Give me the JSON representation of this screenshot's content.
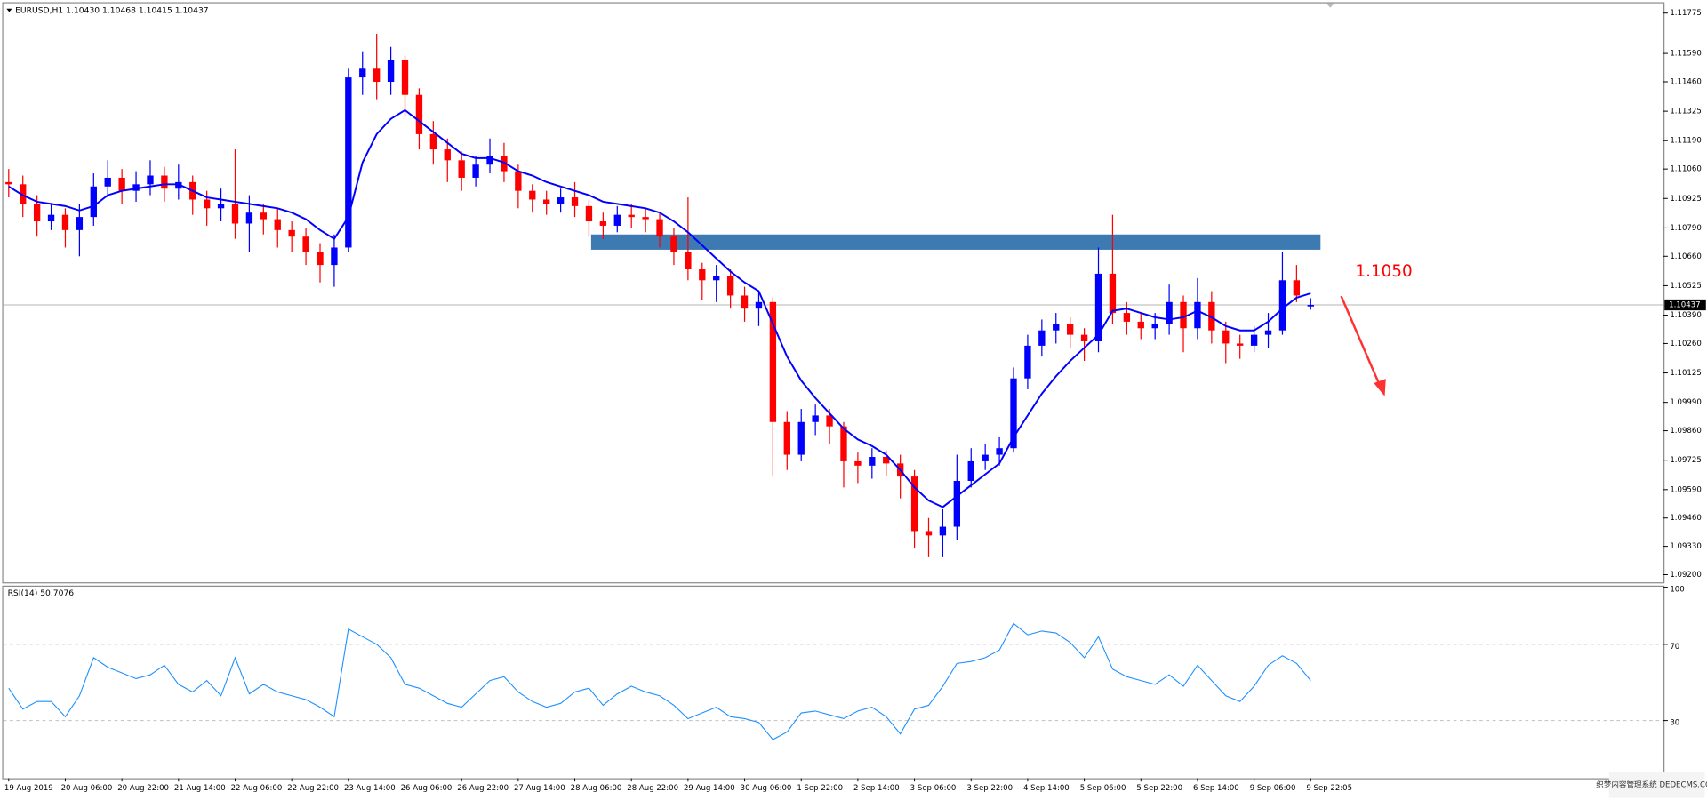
{
  "chart_data": {
    "type": "candlestick",
    "title": "EURUSD,H1  1.10430 1.10468 1.10415 1.10437",
    "categories": [
      "19 Aug 2019",
      null,
      null,
      null,
      "20 Aug 06:00",
      null,
      null,
      null,
      "20 Aug 22:00",
      null,
      null,
      null,
      "21 Aug 14:00",
      null,
      null,
      null,
      "22 Aug 06:00",
      null,
      null,
      null,
      "22 Aug 22:00",
      null,
      null,
      null,
      "23 Aug 14:00",
      null,
      null,
      null,
      "26 Aug 06:00",
      null,
      null,
      null,
      "26 Aug 22:00",
      null,
      null,
      null,
      "27 Aug 14:00",
      null,
      null,
      null,
      "28 Aug 06:00",
      null,
      null,
      null,
      "28 Aug 22:00",
      null,
      null,
      null,
      "29 Aug 14:00",
      null,
      null,
      null,
      "30 Aug 06:00",
      null,
      null,
      null,
      "1 Sep 22:00",
      null,
      null,
      null,
      "2 Sep 14:00",
      null,
      null,
      null,
      "3 Sep 06:00",
      null,
      null,
      null,
      "3 Sep 22:00",
      null,
      null,
      null,
      "4 Sep 14:00",
      null,
      null,
      null,
      "5 Sep 06:00",
      null,
      null,
      null,
      "5 Sep 22:00",
      null,
      null,
      null,
      "6 Sep 14:00",
      null,
      null,
      null,
      "9 Sep 06:00",
      null,
      null,
      null,
      "9 Sep 22:05"
    ],
    "open": [
      1.11,
      1.1099,
      1.109,
      1.1082,
      1.1085,
      1.1078,
      1.1084,
      1.1098,
      1.1102,
      1.1096,
      1.1099,
      1.1103,
      1.1097,
      1.11,
      1.1092,
      1.1088,
      1.109,
      1.1081,
      1.1086,
      1.1083,
      1.1078,
      1.1075,
      1.1068,
      1.1062,
      1.107,
      1.1148,
      1.1152,
      1.1146,
      1.1156,
      1.114,
      1.1122,
      1.1115,
      1.111,
      1.1102,
      1.1108,
      1.1112,
      1.1105,
      1.1096,
      1.1092,
      1.109,
      1.1093,
      1.1089,
      1.1082,
      1.108,
      1.1085,
      1.1084,
      1.1083,
      1.1075,
      1.1068,
      1.106,
      1.1055,
      1.1057,
      1.1048,
      1.1042,
      1.1045,
      1.099,
      1.0975,
      1.099,
      1.0993,
      1.0988,
      1.0972,
      1.097,
      1.0974,
      1.0971,
      1.0965,
      1.094,
      1.0938,
      1.0942,
      1.0963,
      1.0972,
      1.0975,
      1.0978,
      1.101,
      1.1025,
      1.1032,
      1.1035,
      1.103,
      1.1027,
      1.1058,
      1.104,
      1.1036,
      1.1033,
      1.1035,
      1.1045,
      1.1033,
      1.1045,
      1.1032,
      1.1026,
      1.1025,
      1.103,
      1.1032,
      1.1055,
      1.1043
    ],
    "high": [
      1.1106,
      1.1103,
      1.1094,
      1.109,
      1.1088,
      1.109,
      1.1104,
      1.111,
      1.1106,
      1.1105,
      1.111,
      1.1107,
      1.1108,
      1.1103,
      1.1096,
      1.1097,
      1.1115,
      1.1094,
      1.109,
      1.1088,
      1.1082,
      1.1079,
      1.1072,
      1.1076,
      1.1152,
      1.116,
      1.1168,
      1.1162,
      1.1158,
      1.1143,
      1.1128,
      1.112,
      1.1114,
      1.1112,
      1.112,
      1.1118,
      1.1108,
      1.1099,
      1.1096,
      1.1097,
      1.11,
      1.1092,
      1.1086,
      1.1089,
      1.109,
      1.1088,
      1.1086,
      1.1079,
      1.1093,
      1.1063,
      1.1062,
      1.106,
      1.1052,
      1.105,
      1.1047,
      1.0995,
      1.0996,
      1.0998,
      1.0996,
      1.099,
      1.0976,
      1.0978,
      1.0977,
      1.0975,
      1.0968,
      1.0946,
      1.095,
      1.0975,
      1.0978,
      1.098,
      1.0983,
      1.1015,
      1.103,
      1.1037,
      1.104,
      1.1038,
      1.1033,
      1.107,
      1.1085,
      1.1045,
      1.104,
      1.104,
      1.1053,
      1.1048,
      1.1056,
      1.105,
      1.1036,
      1.103,
      1.1034,
      1.104,
      1.1068,
      1.1062,
      1.10468
    ],
    "low": [
      1.1093,
      1.1084,
      1.1075,
      1.1078,
      1.107,
      1.1066,
      1.108,
      1.1093,
      1.109,
      1.1091,
      1.1094,
      1.1091,
      1.1092,
      1.1085,
      1.108,
      1.1082,
      1.1074,
      1.1068,
      1.1076,
      1.107,
      1.1068,
      1.1062,
      1.1054,
      1.1052,
      1.1068,
      1.114,
      1.1138,
      1.114,
      1.113,
      1.1115,
      1.1108,
      1.11,
      1.1096,
      1.1098,
      1.1104,
      1.11,
      1.1088,
      1.1086,
      1.1085,
      1.1086,
      1.1084,
      1.1075,
      1.1074,
      1.1077,
      1.1079,
      1.1077,
      1.107,
      1.1062,
      1.1055,
      1.1046,
      1.1045,
      1.1042,
      1.1036,
      1.1034,
      1.0965,
      1.0968,
      1.0972,
      1.0984,
      1.098,
      1.096,
      1.0962,
      1.0964,
      1.0965,
      1.0955,
      1.0932,
      1.0928,
      1.0928,
      1.0936,
      1.096,
      1.0968,
      1.097,
      1.0976,
      1.1005,
      1.102,
      1.1026,
      1.1024,
      1.1018,
      1.1022,
      1.1035,
      1.103,
      1.1028,
      1.1028,
      1.103,
      1.1022,
      1.1028,
      1.1026,
      1.1017,
      1.1019,
      1.1022,
      1.1024,
      1.103,
      1.1045,
      1.10415
    ],
    "close": [
      1.1099,
      1.109,
      1.1082,
      1.1085,
      1.1078,
      1.1084,
      1.1098,
      1.1102,
      1.1096,
      1.1099,
      1.1103,
      1.1097,
      1.11,
      1.1092,
      1.1088,
      1.109,
      1.1081,
      1.1086,
      1.1083,
      1.1078,
      1.1075,
      1.1068,
      1.1062,
      1.107,
      1.1148,
      1.1152,
      1.1146,
      1.1156,
      1.114,
      1.1122,
      1.1115,
      1.111,
      1.1102,
      1.1108,
      1.1112,
      1.1105,
      1.1096,
      1.1092,
      1.109,
      1.1093,
      1.1089,
      1.1082,
      1.108,
      1.1085,
      1.1084,
      1.1083,
      1.1075,
      1.1068,
      1.106,
      1.1055,
      1.1057,
      1.1048,
      1.1042,
      1.1045,
      1.099,
      1.0975,
      1.099,
      1.0993,
      1.0988,
      1.0972,
      1.097,
      1.0974,
      1.0971,
      1.0965,
      1.094,
      1.0938,
      1.0942,
      1.0963,
      1.0972,
      1.0975,
      1.0978,
      1.101,
      1.1025,
      1.1032,
      1.1035,
      1.103,
      1.1027,
      1.1058,
      1.104,
      1.1036,
      1.1033,
      1.1035,
      1.1045,
      1.1033,
      1.1045,
      1.1032,
      1.1026,
      1.1025,
      1.103,
      1.1032,
      1.1055,
      1.1048,
      1.10437
    ],
    "up_color": "#0000ff",
    "down_color": "#ff0000",
    "moving_average": [
      1.1098,
      1.1094,
      1.1091,
      1.109,
      1.1089,
      1.1087,
      1.1089,
      1.1094,
      1.1096,
      1.1097,
      1.1098,
      1.1099,
      1.1099,
      1.1096,
      1.1093,
      1.1092,
      1.1091,
      1.109,
      1.1089,
      1.1088,
      1.1086,
      1.1083,
      1.1078,
      1.1074,
      1.1084,
      1.1109,
      1.1122,
      1.1129,
      1.1133,
      1.1128,
      1.1123,
      1.1118,
      1.1113,
      1.1111,
      1.1111,
      1.1109,
      1.1105,
      1.1103,
      1.11,
      1.1098,
      1.1096,
      1.1094,
      1.1091,
      1.109,
      1.1089,
      1.1088,
      1.1086,
      1.1082,
      1.1077,
      1.1071,
      1.1065,
      1.1059,
      1.1054,
      1.105,
      1.1035,
      1.102,
      1.1009,
      1.1001,
      1.0994,
      1.0987,
      1.0982,
      1.0979,
      1.0975,
      1.0968,
      1.096,
      1.0954,
      1.0951,
      1.0956,
      1.0961,
      1.0966,
      1.0971,
      1.0983,
      1.0993,
      1.1003,
      1.1011,
      1.1018,
      1.1024,
      1.103,
      1.1041,
      1.1042,
      1.104,
      1.1038,
      1.1037,
      1.1038,
      1.1041,
      1.1038,
      1.1034,
      1.1032,
      1.1032,
      1.1036,
      1.1042,
      1.1047,
      1.1049
    ],
    "ma_color": "#0000ff",
    "ylim": [
      1.09165,
      1.1181
    ],
    "yticks": [
      1.11775,
      {
        "value": 1.1159,
        "label": "1.11590"
      },
      {
        "value": 1.1146,
        "label": "1.11460"
      },
      1.11325,
      {
        "value": 1.1119,
        "label": "1.11190"
      },
      {
        "value": 1.1106,
        "label": "1.11060"
      },
      1.10925,
      {
        "value": 1.1079,
        "label": "1.10790"
      },
      {
        "value": 1.1066,
        "label": "1.10660"
      },
      1.10525,
      {
        "value": 1.1039,
        "label": "1.10390"
      },
      {
        "value": 1.1026,
        "label": "1.10260"
      },
      1.10125,
      {
        "value": 1.0999,
        "label": "1.09990"
      },
      {
        "value": 1.0986,
        "label": "1.09860"
      },
      1.09725,
      {
        "value": 1.0959,
        "label": "1.09590"
      },
      {
        "value": 1.0946,
        "label": "1.09460"
      },
      {
        "value": 1.0933,
        "label": "1.09330"
      },
      {
        "value": 1.092,
        "label": "1.09200"
      }
    ],
    "current_price": 1.10437,
    "resistance_zone": [
      1.1069,
      1.1076
    ],
    "zone_color": "#3d7ab2",
    "annotation": "1.1050",
    "annotation_color": "#ff0000",
    "rsi": {
      "type": "line",
      "label": "RSI(14) 50.7076",
      "values": [
        47,
        36,
        40,
        40,
        32,
        43,
        63,
        58,
        55,
        52,
        54,
        59,
        49,
        45,
        51,
        43,
        63,
        44,
        49,
        45,
        43,
        41,
        37,
        32,
        78,
        74,
        70,
        63,
        49,
        47,
        43,
        39,
        37,
        44,
        51,
        53,
        45,
        40,
        37,
        39,
        45,
        47,
        38,
        44,
        48,
        45,
        43,
        38,
        31,
        34,
        37,
        32,
        31,
        29,
        20,
        24,
        34,
        35,
        33,
        31,
        35,
        37,
        32,
        23,
        36,
        38,
        48,
        60,
        61,
        63,
        67,
        81,
        75,
        77,
        76,
        71,
        63,
        74,
        57,
        53,
        51,
        49,
        54,
        48,
        59,
        51,
        43,
        40,
        48,
        59,
        64,
        60,
        51
      ],
      "color": "#1e90ff",
      "ylim": [
        0,
        100
      ],
      "yticks": [
        100,
        70,
        30
      ],
      "levels": [
        70,
        30
      ]
    },
    "watermark": "织梦内容管理系统 DEDECMS.COM"
  }
}
